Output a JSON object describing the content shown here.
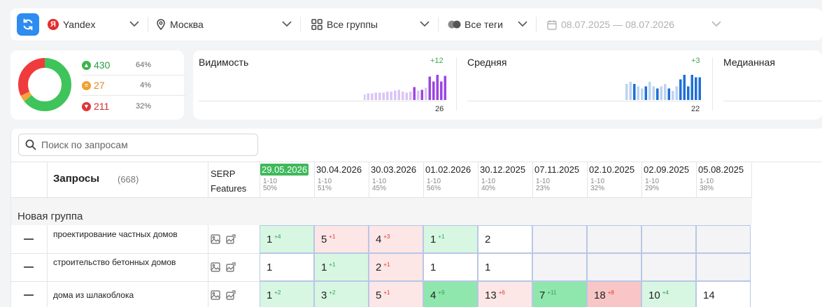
{
  "toolbar": {
    "search_engine": "Yandex",
    "yandex_letter": "Я",
    "region": "Москва",
    "groups": "Все группы",
    "tags": "Все теги",
    "date_range": "08.07.2025 — 08.07.2026"
  },
  "summary": {
    "stats": [
      {
        "value": "430",
        "percent": "64%",
        "color": "#3ab54a",
        "icon": "arrow-up-icon"
      },
      {
        "value": "27",
        "percent": "4%",
        "color": "#f0a030",
        "icon": "equal-icon"
      },
      {
        "value": "211",
        "percent": "32%",
        "color": "#e03535",
        "icon": "arrow-down-icon"
      }
    ]
  },
  "metrics": [
    {
      "title": "Видимость",
      "delta": "+12",
      "value": "26",
      "bars": [
        6,
        7,
        7,
        8,
        8,
        8,
        9,
        9,
        10,
        11,
        9,
        8,
        9,
        14,
        10,
        11,
        13,
        25,
        20,
        27,
        20,
        26
      ],
      "colors_light": "#d9c4f5",
      "colors_dark": "#9b45e0"
    },
    {
      "title": "Средняя",
      "delta": "+3",
      "value": "22",
      "bars": [
        7,
        8,
        7,
        6,
        5,
        6,
        8,
        6,
        5,
        6,
        7,
        5,
        4,
        6,
        9,
        11,
        6,
        11,
        10,
        10
      ],
      "colors_light": "#bcd3f0",
      "colors_dark": "#1f6fd6"
    },
    {
      "title": "Медианная",
      "delta": "",
      "value": "",
      "bars": []
    }
  ],
  "search": {
    "placeholder": "Поиск по запросам"
  },
  "table": {
    "queries_header": "Запросы",
    "queries_count": "(668)",
    "serp_header_1": "SERP",
    "serp_header_2": "Features",
    "dates": [
      {
        "date": "29.05.2026",
        "range": "1-10",
        "pct": "50%",
        "active": true
      },
      {
        "date": "30.04.2026",
        "range": "1-10",
        "pct": "51%"
      },
      {
        "date": "30.03.2026",
        "range": "1-10",
        "pct": "45%"
      },
      {
        "date": "01.02.2026",
        "range": "1-10",
        "pct": "56%"
      },
      {
        "date": "30.12.2025",
        "range": "1-10",
        "pct": "40%"
      },
      {
        "date": "07.11.2025",
        "range": "1-10",
        "pct": "23%"
      },
      {
        "date": "02.10.2025",
        "range": "1-10",
        "pct": "32%"
      },
      {
        "date": "02.09.2025",
        "range": "1-10",
        "pct": "29%"
      },
      {
        "date": "05.08.2025",
        "range": "1-10",
        "pct": "38%"
      }
    ],
    "group_name": "Новая группа",
    "rows": [
      {
        "name": "проектирование частных домов",
        "cells": [
          {
            "v": "1",
            "d": "+4",
            "c": "c-green",
            "s": "sup-g"
          },
          {
            "v": "5",
            "d": "+1",
            "c": "c-red",
            "s": "sup-r"
          },
          {
            "v": "4",
            "d": "+3",
            "c": "c-red",
            "s": "sup-r"
          },
          {
            "v": "1",
            "d": "+1",
            "c": "c-green",
            "s": "sup-g"
          },
          {
            "v": "2",
            "d": "",
            "c": "c-white",
            "s": ""
          },
          {
            "v": "",
            "d": "",
            "c": "c-empty",
            "s": ""
          },
          {
            "v": "",
            "d": "",
            "c": "c-empty",
            "s": ""
          },
          {
            "v": "",
            "d": "",
            "c": "c-empty",
            "s": ""
          },
          {
            "v": "",
            "d": "",
            "c": "c-empty",
            "s": ""
          }
        ]
      },
      {
        "name": "строительство бетонных домов",
        "cells": [
          {
            "v": "1",
            "d": "",
            "c": "c-white",
            "s": ""
          },
          {
            "v": "1",
            "d": "+1",
            "c": "c-green",
            "s": "sup-g"
          },
          {
            "v": "2",
            "d": "+1",
            "c": "c-red",
            "s": "sup-r"
          },
          {
            "v": "1",
            "d": "",
            "c": "c-white",
            "s": ""
          },
          {
            "v": "1",
            "d": "",
            "c": "c-white",
            "s": ""
          },
          {
            "v": "",
            "d": "",
            "c": "c-empty",
            "s": ""
          },
          {
            "v": "",
            "d": "",
            "c": "c-empty",
            "s": ""
          },
          {
            "v": "",
            "d": "",
            "c": "c-empty",
            "s": ""
          },
          {
            "v": "",
            "d": "",
            "c": "c-empty",
            "s": ""
          }
        ]
      },
      {
        "name": "дома из шлакоблока",
        "cells": [
          {
            "v": "1",
            "d": "+2",
            "c": "c-green",
            "s": "sup-g"
          },
          {
            "v": "3",
            "d": "+2",
            "c": "c-green",
            "s": "sup-g"
          },
          {
            "v": "5",
            "d": "+1",
            "c": "c-red",
            "s": "sup-r"
          },
          {
            "v": "4",
            "d": "+9",
            "c": "c-green2",
            "s": "sup-g"
          },
          {
            "v": "13",
            "d": "+6",
            "c": "c-red",
            "s": "sup-r"
          },
          {
            "v": "7",
            "d": "+11",
            "c": "c-green2",
            "s": "sup-g"
          },
          {
            "v": "18",
            "d": "+8",
            "c": "c-red2",
            "s": "sup-r"
          },
          {
            "v": "10",
            "d": "+4",
            "c": "c-green",
            "s": "sup-g"
          },
          {
            "v": "14",
            "d": "",
            "c": "c-white",
            "s": ""
          }
        ]
      }
    ]
  }
}
